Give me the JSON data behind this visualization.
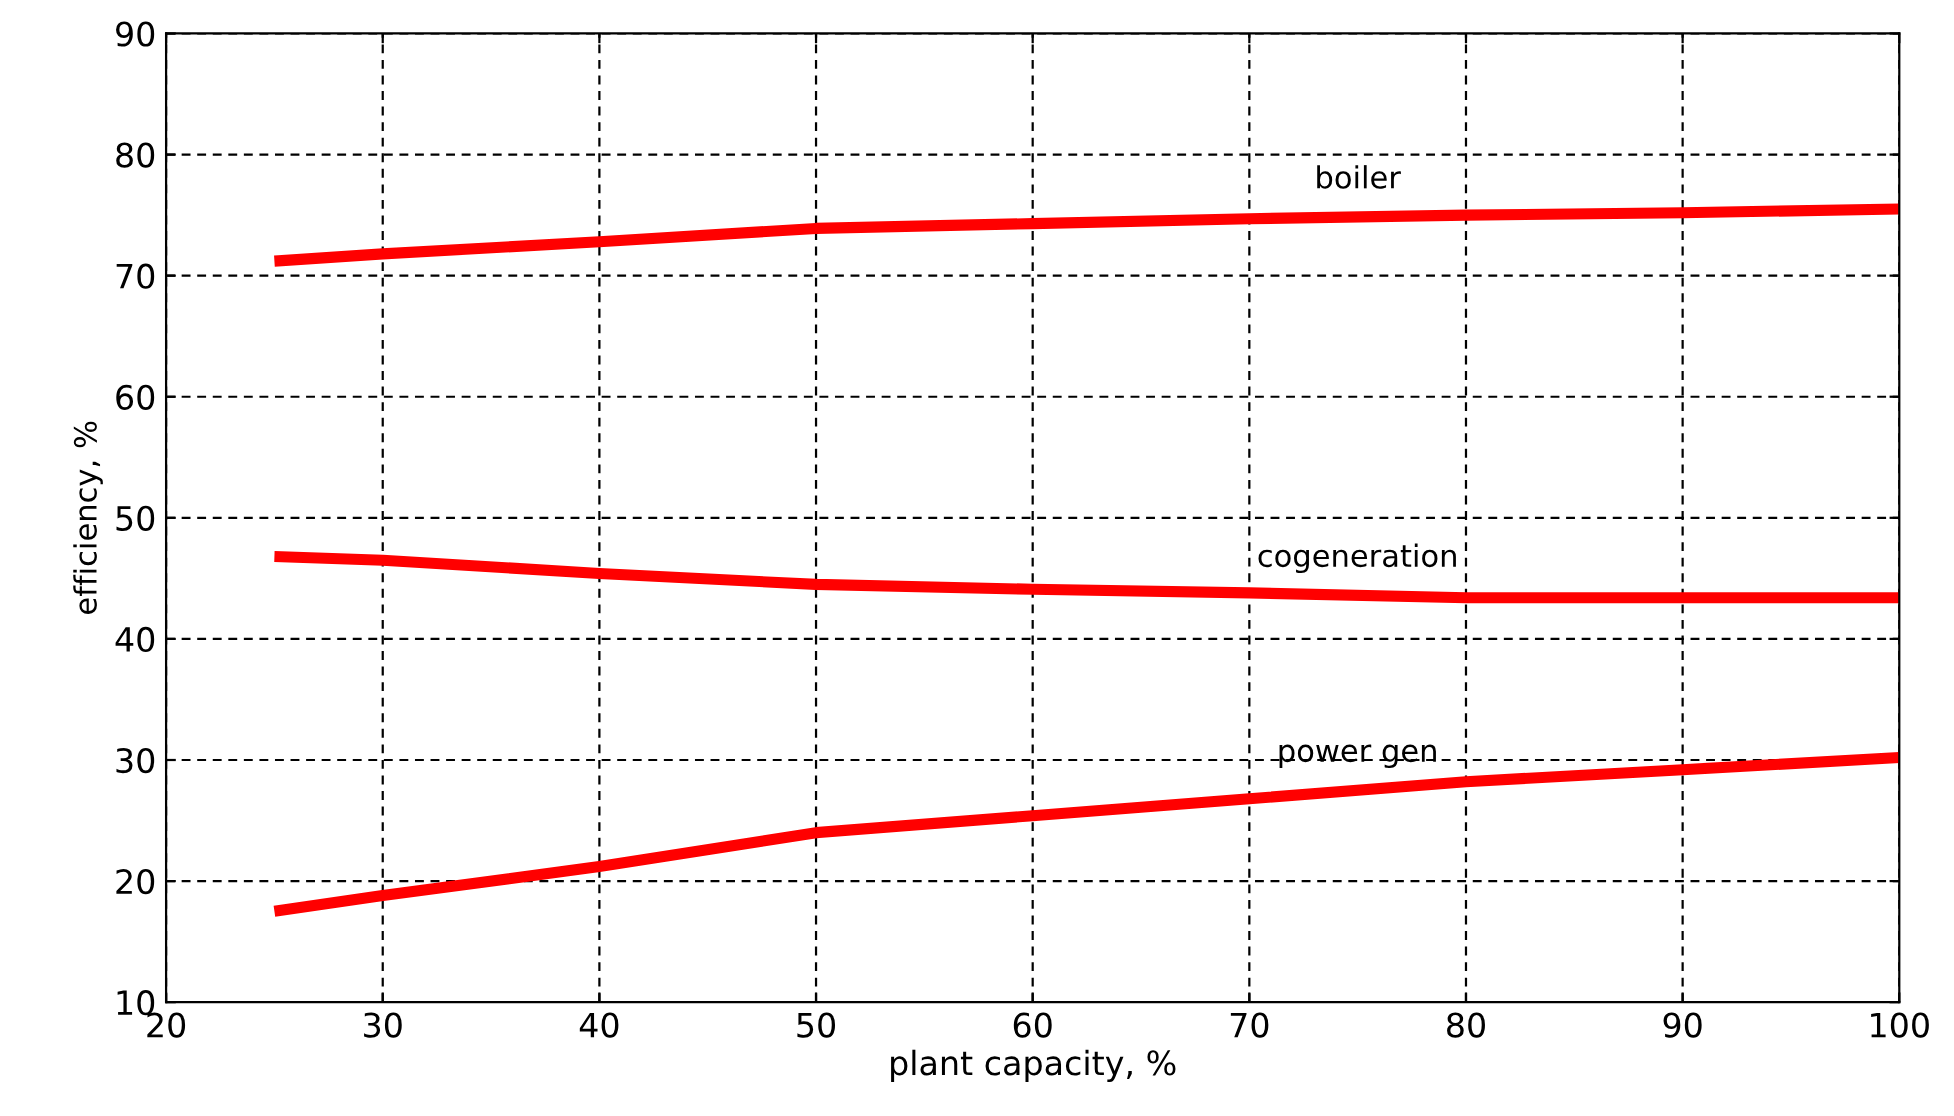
{
  "chart_data": {
    "type": "line",
    "xlabel": "plant capacity, %",
    "ylabel": "efficiency, %",
    "x": [
      25,
      30,
      40,
      50,
      60,
      70,
      80,
      90,
      100
    ],
    "series": [
      {
        "name": "boiler",
        "color": "#ff0000",
        "values": [
          71.2,
          71.8,
          72.8,
          73.9,
          74.3,
          74.7,
          75.0,
          75.2,
          75.5
        ]
      },
      {
        "name": "cogeneration",
        "color": "#ff0000",
        "values": [
          46.8,
          46.5,
          45.4,
          44.5,
          44.1,
          43.8,
          43.4,
          43.4,
          43.4
        ]
      },
      {
        "name": "power gen",
        "color": "#ff0000",
        "values": [
          17.5,
          18.8,
          21.2,
          24.0,
          25.4,
          26.8,
          28.2,
          29.2,
          30.2
        ]
      }
    ],
    "xlim": [
      20,
      100
    ],
    "xticks": [
      20,
      30,
      40,
      50,
      60,
      70,
      80,
      90,
      100
    ],
    "ylim": [
      10,
      90
    ],
    "yticks": [
      10,
      20,
      30,
      40,
      50,
      60,
      70,
      80,
      90
    ],
    "grid": true,
    "line_style": "solid",
    "legend": false
  }
}
